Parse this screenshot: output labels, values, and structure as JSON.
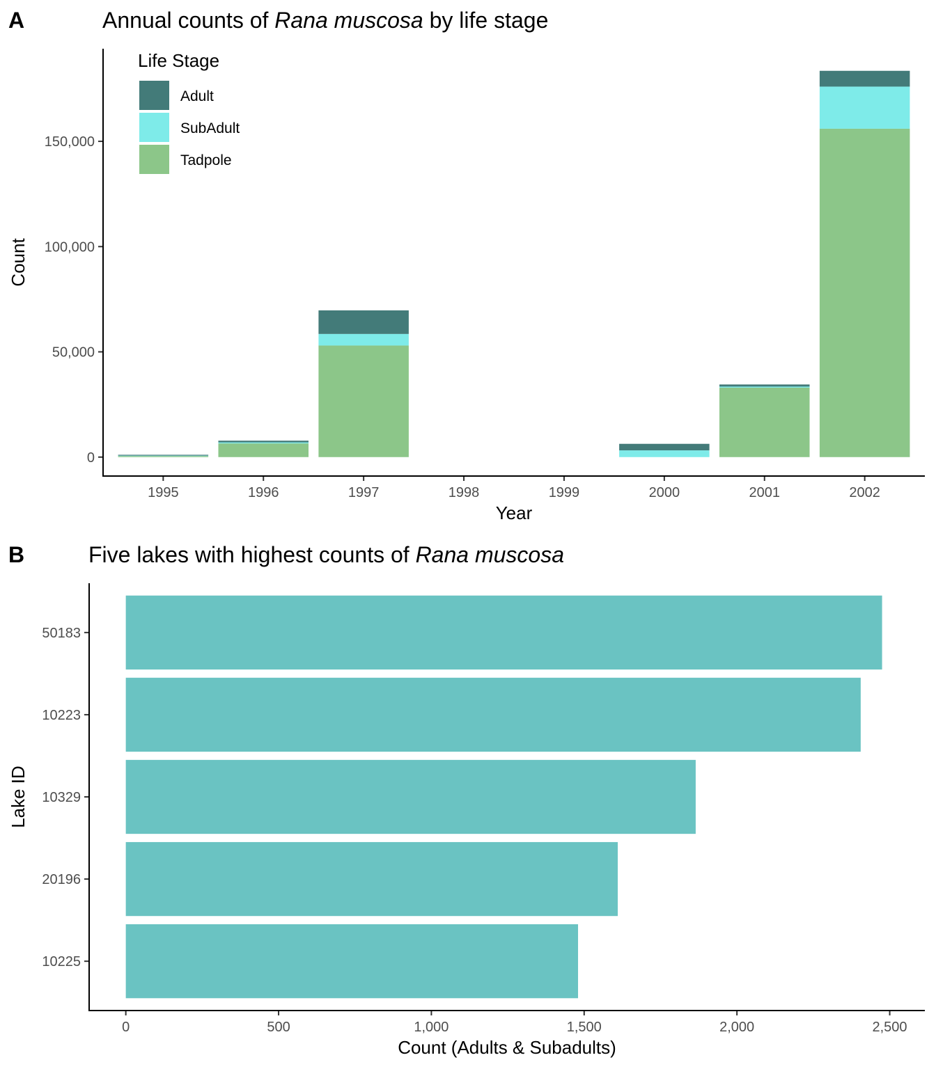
{
  "chart_data": [
    {
      "panel": "A",
      "type": "bar",
      "stacked": true,
      "title_parts": [
        "Annual counts of ",
        "Rana muscosa",
        " by life stage"
      ],
      "xlabel": "Year",
      "ylabel": "Count",
      "categories": [
        "1995",
        "1996",
        "1997",
        "1998",
        "1999",
        "2000",
        "2001",
        "2002"
      ],
      "ylim": [
        -9000,
        194000
      ],
      "yticks": [
        0,
        50000,
        100000,
        150000
      ],
      "ytick_labels": [
        "0",
        "50,000",
        "100,000",
        "150,000"
      ],
      "legend": {
        "title": "Life Stage",
        "position": "top-left"
      },
      "series": [
        {
          "name": "Tadpole",
          "color": "#8cc689",
          "values": [
            500,
            6500,
            53000,
            0,
            0,
            0,
            33000,
            156000
          ]
        },
        {
          "name": "SubAdult",
          "color": "#7eebe9",
          "values": [
            200,
            500,
            5500,
            0,
            0,
            3200,
            500,
            20000
          ]
        },
        {
          "name": "Adult",
          "color": "#437b79",
          "values": [
            400,
            800,
            11200,
            0,
            0,
            3100,
            1000,
            7500
          ]
        }
      ],
      "legend_order": [
        "Adult",
        "SubAdult",
        "Tadpole"
      ],
      "grid": false
    },
    {
      "panel": "B",
      "type": "bar",
      "orientation": "horizontal",
      "title_parts": [
        "Five lakes with highest counts of ",
        "Rana muscosa",
        ""
      ],
      "xlabel": "Count (Adults & Subadults)",
      "ylabel": "Lake ID",
      "categories": [
        "50183",
        "10223",
        "10329",
        "20196",
        "10225"
      ],
      "values": [
        2475,
        2405,
        1865,
        1610,
        1480
      ],
      "color": "#6ac3c2",
      "xlim": [
        -120,
        2615
      ],
      "xticks": [
        0,
        500,
        1000,
        1500,
        2000,
        2500
      ],
      "xtick_labels": [
        "0",
        "500",
        "1,000",
        "1,500",
        "2,000",
        "2,500"
      ],
      "grid": false
    }
  ]
}
